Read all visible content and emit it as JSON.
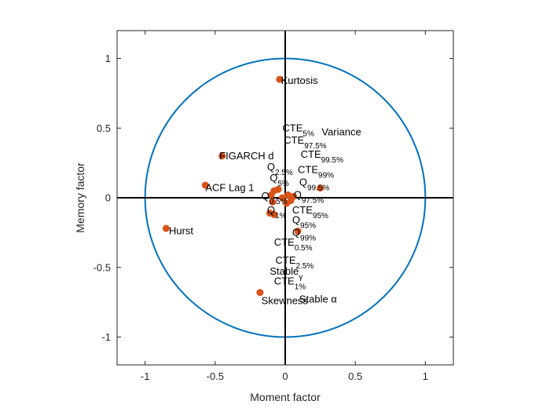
{
  "chart_data": {
    "type": "scatter",
    "xlabel": "Moment factor",
    "ylabel": "Memory factor",
    "xlim": [
      -1.2,
      1.2
    ],
    "ylim": [
      -1.2,
      1.2
    ],
    "xticks": [
      -1,
      -0.5,
      0,
      0.5,
      1
    ],
    "yticks": [
      -1,
      -0.5,
      0,
      0.5,
      1
    ],
    "xtick_labels": [
      "-1",
      "-0.5",
      "0",
      "0.5",
      "1"
    ],
    "ytick_labels": [
      "-1",
      "-0.5",
      "0",
      "0.5",
      "1"
    ],
    "grid": false,
    "unit_circle": true,
    "colors": {
      "circle": "#0072BD",
      "points": "#D95319",
      "axes": "#000000",
      "frame": "#262626"
    },
    "points": [
      {
        "x": -0.04,
        "y": 0.85
      },
      {
        "x": -0.45,
        "y": 0.3
      },
      {
        "x": -0.57,
        "y": 0.09
      },
      {
        "x": -0.85,
        "y": -0.22
      },
      {
        "x": -0.18,
        "y": -0.68
      },
      {
        "x": 0.25,
        "y": 0.07
      },
      {
        "x": 0.09,
        "y": -0.24
      },
      {
        "x": -0.08,
        "y": 0.05
      },
      {
        "x": -0.05,
        "y": 0.06
      },
      {
        "x": -0.1,
        "y": 0.02
      },
      {
        "x": -0.09,
        "y": -0.03
      },
      {
        "x": -0.11,
        "y": -0.11
      },
      {
        "x": -0.08,
        "y": -0.12
      },
      {
        "x": 0.02,
        "y": 0.02
      },
      {
        "x": 0.04,
        "y": -0.02
      },
      {
        "x": 0.06,
        "y": 0.01
      },
      {
        "x": 0.01,
        "y": -0.04
      },
      {
        "x": -0.02,
        "y": 0.0
      }
    ],
    "labels": [
      {
        "x": -0.03,
        "y": 0.84,
        "text": "Kurtosis"
      },
      {
        "x": -0.47,
        "y": 0.3,
        "text": "FIGARCH d"
      },
      {
        "x": -0.57,
        "y": 0.07,
        "text": "ACF Lag 1"
      },
      {
        "x": -0.83,
        "y": -0.24,
        "text": "Hurst"
      },
      {
        "x": -0.17,
        "y": -0.74,
        "text": "Skewness"
      },
      {
        "x": -0.02,
        "y": 0.5,
        "text": "CTE",
        "sub": "5%"
      },
      {
        "x": 0.26,
        "y": 0.47,
        "text": "Variance"
      },
      {
        "x": -0.01,
        "y": 0.41,
        "text": "CTE",
        "sub": "97.5%"
      },
      {
        "x": 0.11,
        "y": 0.31,
        "text": "CTE",
        "sub": "99.5%"
      },
      {
        "x": -0.13,
        "y": 0.22,
        "text": "Q",
        "sub": "2.5%"
      },
      {
        "x": 0.09,
        "y": 0.2,
        "text": "CTE",
        "sub": "99%"
      },
      {
        "x": -0.11,
        "y": 0.14,
        "text": "Q",
        "sub": "5%"
      },
      {
        "x": 0.1,
        "y": 0.11,
        "text": "Q",
        "sub": "99.5%"
      },
      {
        "x": -0.17,
        "y": 0.01,
        "text": "Q",
        "sub": "0.5%"
      },
      {
        "x": 0.06,
        "y": 0.02,
        "text": "Q",
        "sub": "97.5%"
      },
      {
        "x": -0.13,
        "y": -0.09,
        "text": "Q",
        "sub": "1%"
      },
      {
        "x": 0.05,
        "y": -0.09,
        "text": "CTE",
        "sub": "95%"
      },
      {
        "x": 0.05,
        "y": -0.16,
        "text": "Q",
        "sub": "95%"
      },
      {
        "x": 0.05,
        "y": -0.25,
        "text": "Q",
        "sub": "99%"
      },
      {
        "x": -0.08,
        "y": -0.32,
        "text": "CTE",
        "sub": "0.5%"
      },
      {
        "x": -0.07,
        "y": -0.45,
        "text": "CTE",
        "sub": "2.5%"
      },
      {
        "x": -0.11,
        "y": -0.53,
        "text": "Stable",
        "sub": "γ"
      },
      {
        "x": -0.08,
        "y": -0.6,
        "text": "CTE",
        "sub": "1%"
      },
      {
        "x": 0.1,
        "y": -0.73,
        "text": "Stable α"
      }
    ]
  }
}
